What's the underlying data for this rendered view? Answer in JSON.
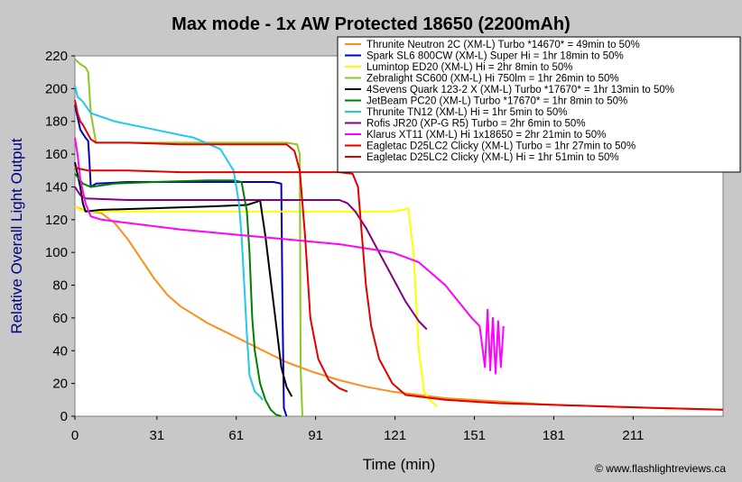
{
  "chart_data": {
    "type": "line",
    "title": "Max mode - 1x AW Protected 18650 (2200mAh)",
    "xlabel": "Time (min)",
    "ylabel": "Relative Overall Light Output",
    "xlim": [
      0,
      245
    ],
    "ylim": [
      0,
      220
    ],
    "xticks": [
      0,
      31,
      61,
      91,
      121,
      151,
      181,
      211
    ],
    "yticks": [
      0,
      20,
      40,
      60,
      80,
      100,
      120,
      140,
      160,
      180,
      200,
      220
    ],
    "grid": false,
    "legend_position": "top-right",
    "credit": "© www.flashlightreviews.ca",
    "series": [
      {
        "name": "Thrunite Neutron 2C (XM-L) Turbo *14670* = 49min to 50%",
        "color": "#ff8c1a",
        "x": [
          0,
          3,
          5,
          10,
          15,
          20,
          25,
          30,
          35,
          40,
          45,
          50,
          60,
          70,
          80,
          90,
          100,
          110,
          120,
          130,
          140,
          160,
          180,
          200,
          220,
          245
        ],
        "y": [
          128,
          126,
          125,
          124,
          118,
          108,
          96,
          84,
          74,
          67,
          62,
          57,
          49,
          41,
          33,
          27,
          22,
          18,
          15,
          13,
          11,
          9,
          7,
          6,
          5,
          4
        ]
      },
      {
        "name": "Spark SL6 800CW (XM-L) Super Hi = 1hr 18min to 50%",
        "color": "#0000c0",
        "x": [
          0,
          2,
          4,
          5,
          5.5,
          6,
          8,
          20,
          40,
          60,
          70,
          75,
          78,
          78.5,
          79,
          80
        ],
        "y": [
          190,
          175,
          170,
          168,
          155,
          140,
          142,
          143,
          143,
          143,
          143,
          143,
          142,
          60,
          5,
          0
        ]
      },
      {
        "name": "Lumintop ED20 (XM-L) Hi = 2hr 8min to 50%",
        "color": "#ffff00",
        "x": [
          0,
          2,
          5,
          20,
          40,
          60,
          80,
          100,
          120,
          124,
          126,
          128,
          130,
          132,
          134,
          137
        ],
        "y": [
          128,
          126,
          125,
          125,
          125,
          125,
          125,
          125,
          125,
          126,
          127,
          100,
          40,
          15,
          10,
          6
        ]
      },
      {
        "name": "Zebralight SC600 (XM-L) Hi 750lm = 1hr 26min to 50%",
        "color": "#8cc81e",
        "x": [
          0,
          2,
          4,
          5,
          6,
          8,
          20,
          40,
          60,
          80,
          84,
          85,
          85.3,
          86
        ],
        "y": [
          218,
          215,
          213,
          210,
          185,
          167,
          167,
          167,
          167,
          167,
          166,
          160,
          30,
          0
        ]
      },
      {
        "name": "4Sevens Quark 123-2 X (XM-L) Turbo *17670* = 1hr 13min to 50%",
        "color": "#000000",
        "x": [
          0,
          2,
          3,
          4,
          10,
          30,
          50,
          65,
          69,
          70,
          72,
          75,
          78,
          80,
          82
        ],
        "y": [
          155,
          140,
          130,
          125,
          126,
          127,
          128,
          129,
          131,
          132,
          110,
          70,
          30,
          18,
          12
        ]
      },
      {
        "name": "JetBeam PC20 (XM-L) Turbo *17670* = 1hr 8min to 50%",
        "color": "#008000",
        "x": [
          0,
          3,
          6,
          15,
          30,
          50,
          60,
          63,
          65,
          66,
          67,
          68,
          70,
          72,
          74,
          76,
          78
        ],
        "y": [
          148,
          142,
          140,
          142,
          143,
          144,
          144,
          143,
          125,
          100,
          60,
          40,
          20,
          10,
          4,
          1,
          0
        ]
      },
      {
        "name": "Thrunite TN12 (XM-L) Hi = 1hr 5min to 50%",
        "color": "#20c8f0",
        "x": [
          0,
          1,
          3,
          6,
          15,
          30,
          45,
          55,
          60,
          61,
          62,
          63,
          64,
          65,
          66,
          68,
          70,
          71
        ],
        "y": [
          202,
          195,
          192,
          185,
          180,
          175,
          170,
          163,
          150,
          140,
          130,
          110,
          80,
          50,
          25,
          15,
          12,
          10
        ]
      },
      {
        "name": "Rofis JR20 (XP-G R5) Turbo = 2hr 6min to 50%",
        "color": "#800080",
        "x": [
          0,
          2,
          4,
          20,
          40,
          60,
          80,
          95,
          100,
          103,
          106,
          110,
          115,
          120,
          125,
          130,
          133
        ],
        "y": [
          140,
          135,
          133,
          132,
          132,
          132,
          132,
          132,
          132,
          130,
          125,
          115,
          100,
          85,
          70,
          58,
          53
        ]
      },
      {
        "name": "Klarus XT11 (XM-L) Hi 1x18650 = 2hr 21min to 50%",
        "color": "#ff00ff",
        "x": [
          0,
          1,
          2,
          4,
          6,
          10,
          20,
          40,
          60,
          80,
          100,
          120,
          130,
          140,
          145,
          150,
          153,
          155,
          156,
          157,
          158,
          159,
          160,
          161,
          162
        ],
        "y": [
          170,
          160,
          145,
          130,
          122,
          120,
          118,
          114,
          111,
          108,
          105,
          100,
          94,
          80,
          70,
          60,
          55,
          30,
          65,
          28,
          60,
          26,
          58,
          30,
          55
        ]
      },
      {
        "name": "Eagletac D25LC2 Clicky (XM-L) Turbo = 1hr 27min to 50%",
        "color": "#e00000",
        "x": [
          0,
          1,
          2,
          3,
          4,
          5,
          6,
          8,
          20,
          40,
          60,
          75,
          80,
          83,
          85,
          87,
          89,
          92,
          96,
          100,
          103
        ],
        "y": [
          193,
          185,
          180,
          178,
          175,
          172,
          169,
          167,
          167,
          166,
          166,
          166,
          166,
          162,
          150,
          110,
          60,
          35,
          22,
          17,
          15
        ]
      },
      {
        "name": "Eagletac D25LC2 Clicky (XM-L) Hi = 1hr 51min to 50%",
        "color": "#e00000",
        "x": [
          0,
          2,
          5,
          20,
          40,
          60,
          80,
          100,
          105,
          107,
          108,
          110,
          112,
          115,
          120,
          125,
          140,
          160,
          180,
          200,
          220,
          245
        ],
        "y": [
          152,
          151,
          150,
          150,
          149,
          149,
          149,
          149,
          148,
          140,
          120,
          80,
          55,
          35,
          20,
          13,
          10,
          8,
          7,
          6,
          5,
          4
        ]
      }
    ]
  }
}
